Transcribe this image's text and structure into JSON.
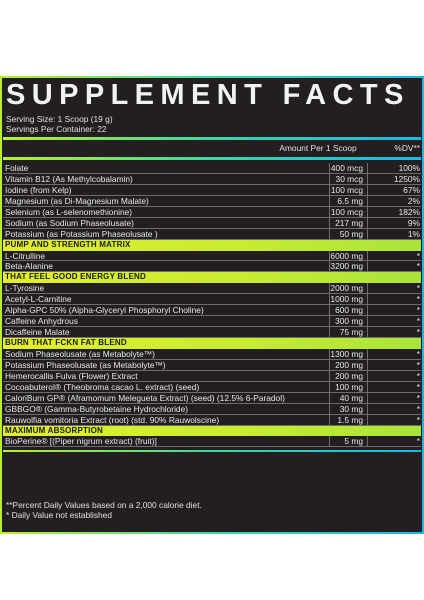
{
  "title": "SUPPLEMENT FACTS",
  "serving_size": "Serving Size: 1 Scoop (19 g)",
  "servings_per_container": "Servings Per Container: 22",
  "header": {
    "amount": "Amount Per 1 Scoop",
    "dv": "%DV**"
  },
  "rows": [
    {
      "type": "ing",
      "name": "Folate",
      "amount": "400 mcg",
      "dv": "100%"
    },
    {
      "type": "ing",
      "name": "Vitamin B12 (As Methylcobalamin)",
      "amount": "30 mcg",
      "dv": "1250%"
    },
    {
      "type": "ing",
      "name": "Iodine (from Kelp)",
      "amount": "100 mcg",
      "dv": "67%"
    },
    {
      "type": "ing",
      "name": "Magnesium (as Di-Magnesium Malate)",
      "amount": "6.5 mg",
      "dv": "2%"
    },
    {
      "type": "ing",
      "name": "Selenium (as L-selenomethionine)",
      "amount": "100 mcg",
      "dv": "182%"
    },
    {
      "type": "ing",
      "name": "Sodium (as Sodium Phaseolusate)",
      "amount": "217 mg",
      "dv": "9%"
    },
    {
      "type": "ing",
      "name": "Potassium (as Potassium Phaseolusate )",
      "amount": "50 mg",
      "dv": "1%"
    },
    {
      "type": "sec",
      "name": "PUMP AND STRENGTH MATRIX"
    },
    {
      "type": "ing",
      "name": "L-Citrulline",
      "amount": "6000 mg",
      "dv": "*"
    },
    {
      "type": "ing",
      "name": "Beta-Alanine",
      "amount": "3200 mg",
      "dv": "*"
    },
    {
      "type": "sec",
      "name": "THAT FEEL GOOD ENERGY BLEND"
    },
    {
      "type": "ing",
      "name": "L-Tyrosine",
      "amount": "2000 mg",
      "dv": "*"
    },
    {
      "type": "ing",
      "name": "Acetyl-L-Carnitine",
      "amount": "1000 mg",
      "dv": "*"
    },
    {
      "type": "ing",
      "name": "Alpha-GPC 50% (Alpha-Glyceryl Phosphoryl Choline)",
      "amount": "600 mg",
      "dv": "*"
    },
    {
      "type": "ing",
      "name": "Caffeine Anhydrous",
      "amount": "300 mg",
      "dv": "*"
    },
    {
      "type": "ing",
      "name": "Dicaffeine Malate",
      "amount": "75 mg",
      "dv": "*"
    },
    {
      "type": "sec",
      "name": "BURN THAT FCKN FAT BLEND"
    },
    {
      "type": "ing",
      "name": "Sodium Phaseolusate (as Metabolyte™)",
      "amount": "1300 mg",
      "dv": "*"
    },
    {
      "type": "ing",
      "name": "Potassium Phaseolusate (as Metabolyte™)",
      "amount": "200 mg",
      "dv": "*"
    },
    {
      "type": "ing",
      "name": "Hemerocallis Fulva (Flower) Extract",
      "amount": "200 mg",
      "dv": "*"
    },
    {
      "type": "ing",
      "name": "Cocoabuterol® (Theobroma cacao L. extract) (seed)",
      "amount": "100 mg",
      "dv": "*"
    },
    {
      "type": "ing",
      "name": "CaloriBurn GP® (Aframomum Melegueta Extract) (seed) (12.5% 6-Paradol)",
      "amount": "40 mg",
      "dv": "*"
    },
    {
      "type": "ing",
      "name": "GBBGO® (Gamma-Butyrobetaine Hydrochloride)",
      "amount": "30 mg",
      "dv": "*"
    },
    {
      "type": "ing",
      "name": "Rauwolfia vomitoria Extract (root) (std. 90% Rauwolscine)",
      "amount": "1.5 mg",
      "dv": "*"
    },
    {
      "type": "sec",
      "name": "MAXIMUM ABSORPTION"
    },
    {
      "type": "ing",
      "name": "BioPerine® [(Piper nigrum extract) (fruit)]",
      "amount": "5 mg",
      "dv": "*"
    }
  ],
  "footnotes": [
    "**Percent Daily Values based on a 2,000 calorie diet.",
    "* Daily Value not established"
  ],
  "colors": {
    "panel": "#231f20",
    "accent_left": "#b9ef2c",
    "accent_mid": "#3fd6a4",
    "accent_right": "#19b9e6",
    "section_bar": "#d8ee2c"
  }
}
